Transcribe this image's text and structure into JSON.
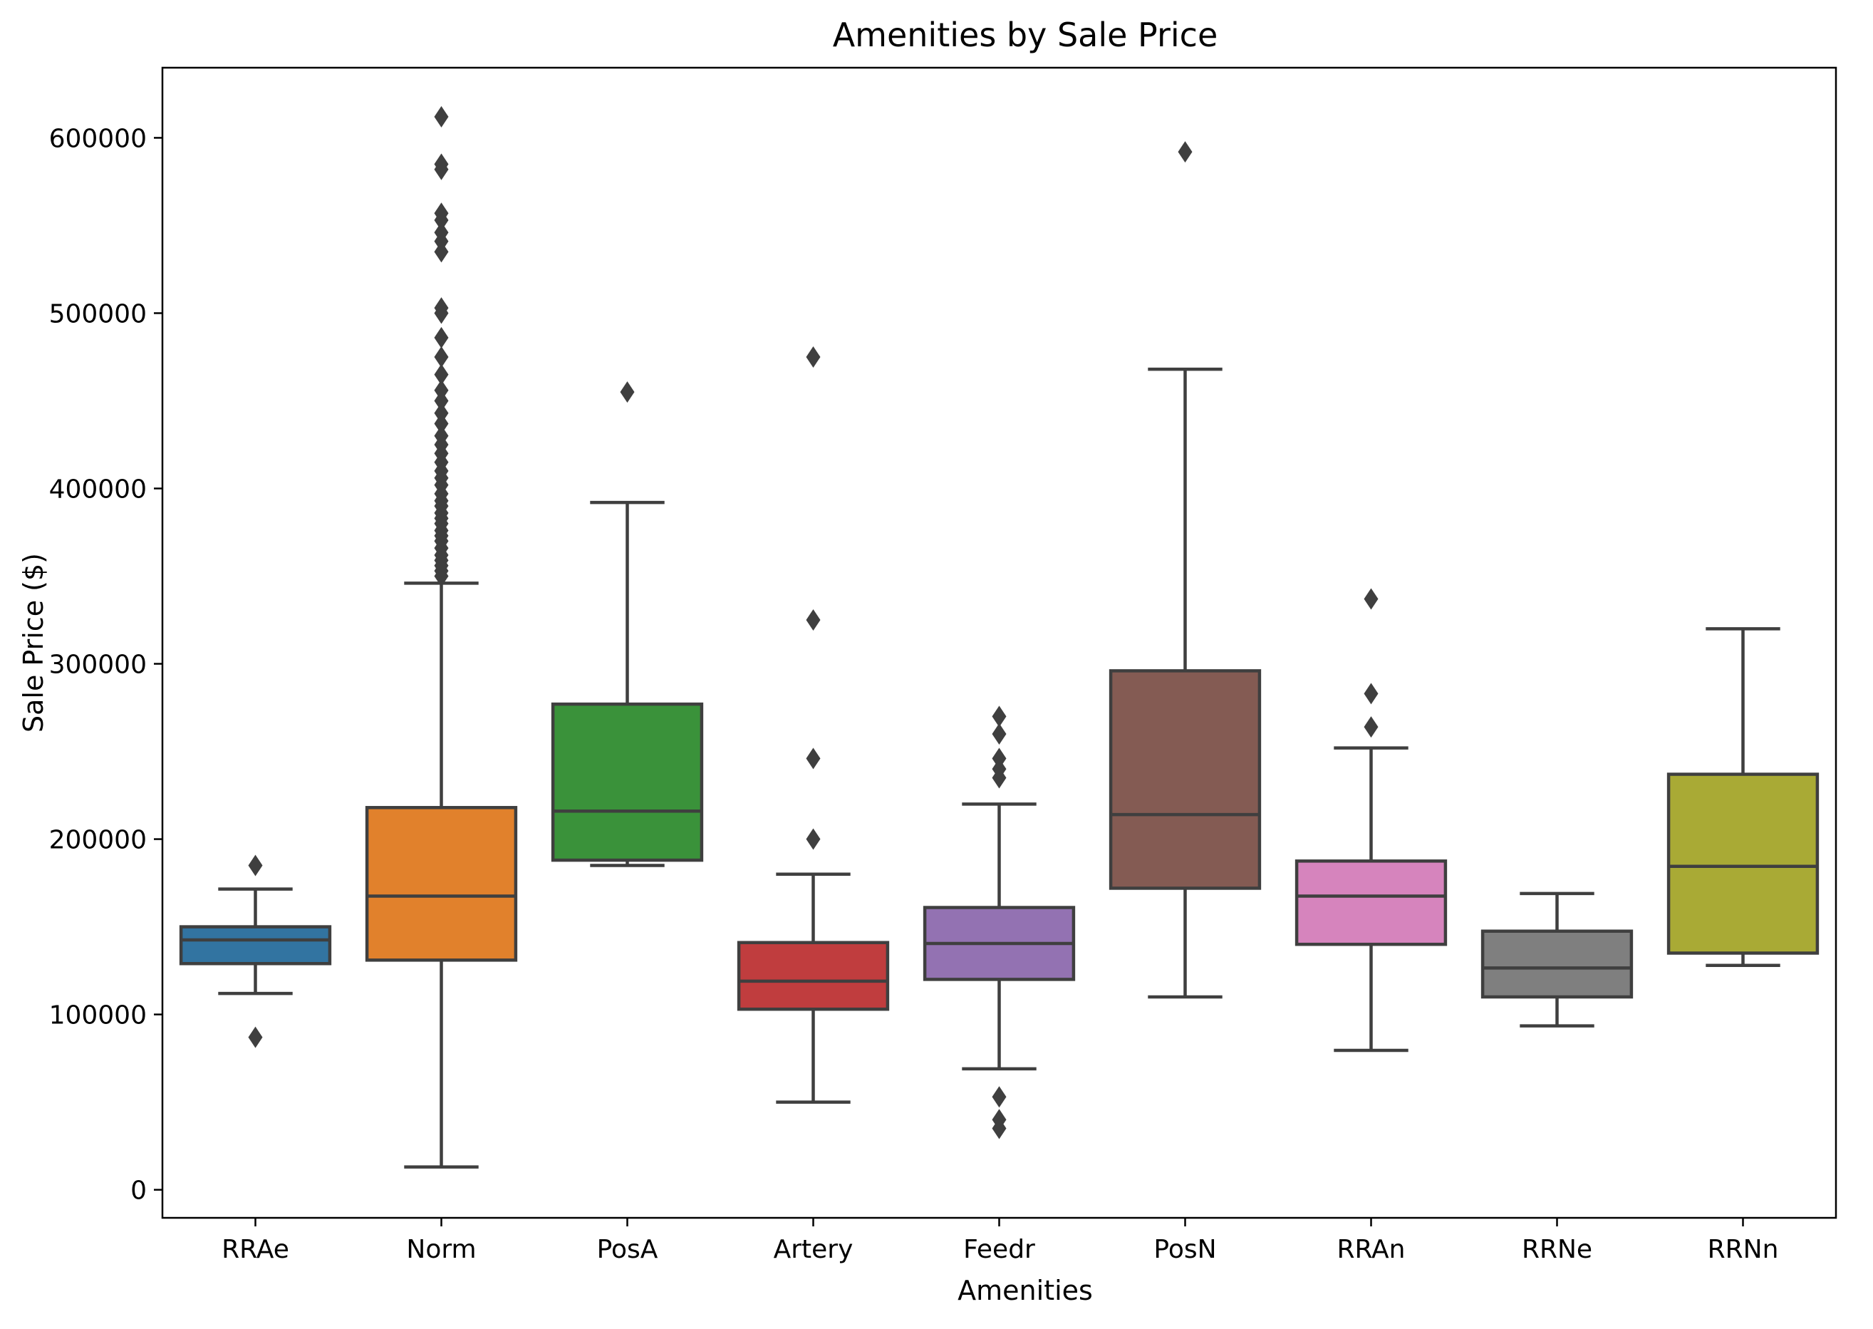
{
  "chart_data": {
    "type": "box",
    "title": "Amenities by Sale Price",
    "xlabel": "Amenities",
    "ylabel": "Sale Price ($)",
    "ylim": [
      -16000,
      640000
    ],
    "yticks": [
      0,
      100000,
      200000,
      300000,
      400000,
      500000,
      600000
    ],
    "grid": false,
    "categories": [
      "RRAe",
      "Norm",
      "PosA",
      "Artery",
      "Feedr",
      "PosN",
      "RRAn",
      "RRNe",
      "RRNn"
    ],
    "colors": [
      "#3274a1",
      "#e1812c",
      "#3a923a",
      "#c03d3e",
      "#9372b2",
      "#845b53",
      "#d684bd",
      "#7f7f7f",
      "#a9aa35"
    ],
    "boxes": [
      {
        "category": "RRAe",
        "whislo": 112000,
        "q1": 129000,
        "median": 142500,
        "q3": 150000,
        "whishi": 171500,
        "fliers": [
          185000,
          87000
        ]
      },
      {
        "category": "Norm",
        "whislo": 13000,
        "q1": 131000,
        "median": 167500,
        "q3": 218000,
        "whishi": 346000,
        "fliers": [
          350000,
          353000,
          356000,
          359000,
          362000,
          366000,
          370000,
          373000,
          376000,
          380000,
          383000,
          386000,
          390000,
          393000,
          397000,
          402000,
          406000,
          410000,
          415000,
          420000,
          425000,
          430000,
          437000,
          443000,
          450000,
          456000,
          465000,
          475000,
          486000,
          500000,
          503000,
          535000,
          541000,
          546000,
          553000,
          557000,
          582000,
          585000,
          612000
        ]
      },
      {
        "category": "PosA",
        "whislo": 185000,
        "q1": 188000,
        "median": 216000,
        "q3": 277000,
        "whishi": 392000,
        "fliers": [
          455000
        ]
      },
      {
        "category": "Artery",
        "whislo": 50000,
        "q1": 103000,
        "median": 119000,
        "q3": 141000,
        "whishi": 180000,
        "fliers": [
          200000,
          246000,
          325000,
          475000
        ]
      },
      {
        "category": "Feedr",
        "whislo": 69000,
        "q1": 120000,
        "median": 140500,
        "q3": 161000,
        "whishi": 220000,
        "fliers": [
          235000,
          240000,
          246000,
          260000,
          270000,
          53000,
          40000,
          35000
        ]
      },
      {
        "category": "PosN",
        "whislo": 110000,
        "q1": 172000,
        "median": 214000,
        "q3": 296000,
        "whishi": 468000,
        "fliers": [
          592000
        ]
      },
      {
        "category": "RRAn",
        "whislo": 79500,
        "q1": 140000,
        "median": 167500,
        "q3": 187500,
        "whishi": 252000,
        "fliers": [
          264000,
          283000,
          337000
        ]
      },
      {
        "category": "RRNe",
        "whislo": 93500,
        "q1": 110000,
        "median": 126500,
        "q3": 147500,
        "whishi": 169000,
        "fliers": []
      },
      {
        "category": "RRNn",
        "whislo": 128000,
        "q1": 135000,
        "median": 184500,
        "q3": 237000,
        "whishi": 320000,
        "fliers": []
      }
    ]
  }
}
